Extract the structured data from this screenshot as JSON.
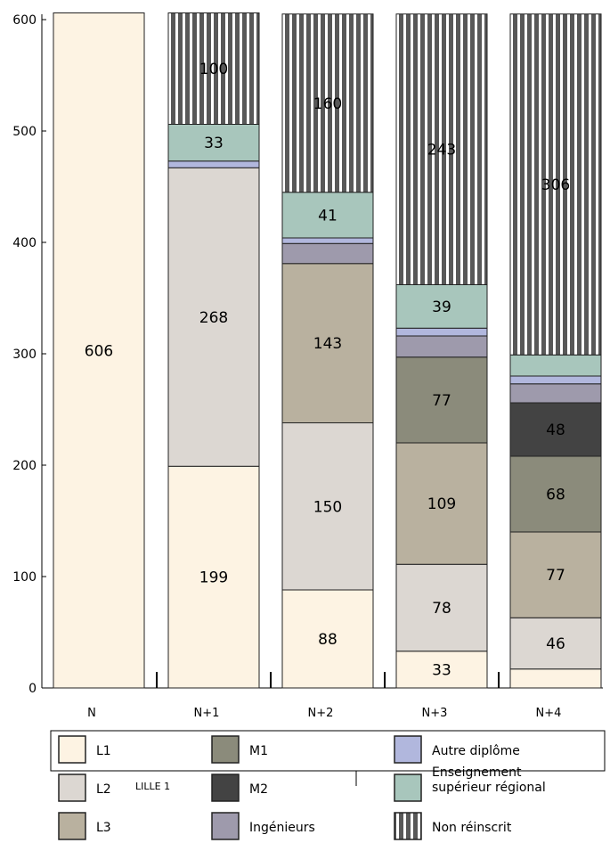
{
  "chart_data": {
    "type": "bar",
    "stacked": true,
    "categories": [
      "N",
      "N+1",
      "N+2",
      "N+3",
      "N+4"
    ],
    "ylim": [
      0,
      600
    ],
    "yticks": [
      "0",
      "100",
      "200",
      "300",
      "400",
      "500",
      "600"
    ],
    "grid": false,
    "legend_position": "bottom",
    "series": [
      {
        "name": "L1",
        "color": "#fdf3e3",
        "values": [
          606,
          199,
          88,
          33,
          17
        ]
      },
      {
        "name": "L2",
        "color": "#dcd7d2",
        "values": [
          0,
          268,
          150,
          78,
          46
        ]
      },
      {
        "name": "L3",
        "color": "#b9b19f",
        "values": [
          0,
          0,
          143,
          109,
          77
        ]
      },
      {
        "name": "M1",
        "color": "#8b8b7b",
        "values": [
          0,
          0,
          0,
          77,
          68
        ]
      },
      {
        "name": "M2",
        "color": "#434343",
        "values": [
          0,
          0,
          0,
          0,
          48
        ]
      },
      {
        "name": "Ingénieurs",
        "color": "#9e9aac",
        "values": [
          0,
          0,
          18,
          19,
          17
        ]
      },
      {
        "name": "Autre diplôme",
        "color": "#b1b7dd",
        "values": [
          0,
          6,
          5,
          7,
          7
        ]
      },
      {
        "name": "Enseignement supérieur régional",
        "color": "#a8c6bc",
        "values": [
          0,
          33,
          41,
          39,
          19
        ]
      },
      {
        "name": "Non réinscrit",
        "color": "#ffffff",
        "pattern": "vertical-stripes",
        "values": [
          0,
          100,
          160,
          243,
          306
        ]
      }
    ],
    "data_labels": [
      {
        "category": "N",
        "series": "L1",
        "text": "606"
      },
      {
        "category": "N+1",
        "series": "L1",
        "text": "199"
      },
      {
        "category": "N+1",
        "series": "L2",
        "text": "268"
      },
      {
        "category": "N+1",
        "series": "Enseignement supérieur régional",
        "text": "33"
      },
      {
        "category": "N+1",
        "series": "Non réinscrit",
        "text": "100"
      },
      {
        "category": "N+2",
        "series": "L1",
        "text": "88"
      },
      {
        "category": "N+2",
        "series": "L2",
        "text": "150"
      },
      {
        "category": "N+2",
        "series": "L3",
        "text": "143"
      },
      {
        "category": "N+2",
        "series": "Enseignement supérieur régional",
        "text": "41"
      },
      {
        "category": "N+2",
        "series": "Non réinscrit",
        "text": "160"
      },
      {
        "category": "N+3",
        "series": "L1",
        "text": "33"
      },
      {
        "category": "N+3",
        "series": "L2",
        "text": "78"
      },
      {
        "category": "N+3",
        "series": "L3",
        "text": "109"
      },
      {
        "category": "N+3",
        "series": "M1",
        "text": "77"
      },
      {
        "category": "N+3",
        "series": "Enseignement supérieur régional",
        "text": "39"
      },
      {
        "category": "N+3",
        "series": "Non réinscrit",
        "text": "243"
      },
      {
        "category": "N+4",
        "series": "L2",
        "text": "46"
      },
      {
        "category": "N+4",
        "series": "L3",
        "text": "77"
      },
      {
        "category": "N+4",
        "series": "M1",
        "text": "68"
      },
      {
        "category": "N+4",
        "series": "M2",
        "text": "48"
      },
      {
        "category": "N+4",
        "series": "Non réinscrit",
        "text": "306"
      }
    ],
    "legend_entries": [
      {
        "label": "L1",
        "series": "L1"
      },
      {
        "label": "M1",
        "series": "M1"
      },
      {
        "label": "Autre diplôme",
        "series": "Autre diplôme"
      },
      {
        "label": "L2",
        "series": "L2"
      },
      {
        "label": "M2",
        "series": "M2"
      },
      {
        "label_lines": [
          "Enseignement",
          "supérieur régional"
        ],
        "series": "Enseignement supérieur régional"
      },
      {
        "label": "L3",
        "series": "L3"
      },
      {
        "label": "Ingénieurs",
        "series": "Ingénieurs"
      },
      {
        "label": "Non réinscrit",
        "series": "Non réinscrit"
      }
    ],
    "footnote": "LILLE 1"
  }
}
